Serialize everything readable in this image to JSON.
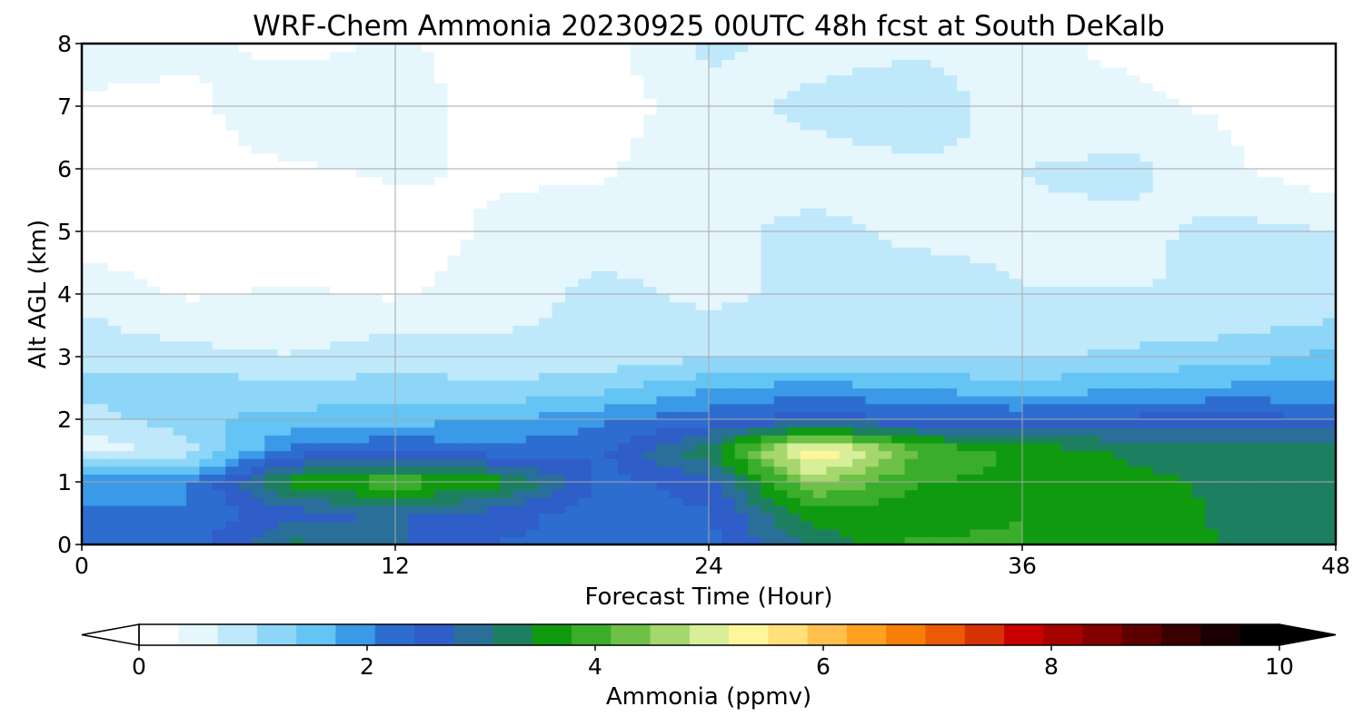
{
  "chart_data": {
    "type": "heatmap",
    "title": "WRF-Chem Ammonia  20230925 00UTC 48h fcst at South DeKalb",
    "xlabel": "Forecast Time (Hour)",
    "ylabel": "Alt AGL (km)",
    "xlim": [
      0,
      48
    ],
    "ylim": [
      0,
      8
    ],
    "x_ticks": [
      0,
      12,
      24,
      36,
      48
    ],
    "y_ticks": [
      0,
      1,
      2,
      3,
      4,
      5,
      6,
      7,
      8
    ],
    "grid": true,
    "x": [
      0,
      4,
      8,
      12,
      16,
      20,
      24,
      28,
      32,
      36,
      40,
      44,
      48
    ],
    "y": [
      0,
      0.5,
      1,
      1.5,
      2,
      2.5,
      3,
      4,
      5,
      6,
      7,
      8
    ],
    "values": [
      [
        2.3,
        2.2,
        3.2,
        2.8,
        2.4,
        2.2,
        2.3,
        3.2,
        3.9,
        3.8,
        3.7,
        3.4,
        3.4
      ],
      [
        2.1,
        2.1,
        2.6,
        2.8,
        2.6,
        2.2,
        2.4,
        3.6,
        3.6,
        3.8,
        3.6,
        3.4,
        3.4
      ],
      [
        2.0,
        2.0,
        3.6,
        4.1,
        3.6,
        2.3,
        2.6,
        4.6,
        3.8,
        3.7,
        3.5,
        3.4,
        3.4
      ],
      [
        0.5,
        0.8,
        2.2,
        2.4,
        2.2,
        2.4,
        3.4,
        5.6,
        4.2,
        3.7,
        3.4,
        3.4,
        3.4
      ],
      [
        0.8,
        1.3,
        1.5,
        1.6,
        1.7,
        2.0,
        2.3,
        2.6,
        2.4,
        2.4,
        2.5,
        2.6,
        2.4
      ],
      [
        1.2,
        1.3,
        1.1,
        1.2,
        1.1,
        1.3,
        1.7,
        1.9,
        1.7,
        1.5,
        1.7,
        1.8,
        1.8
      ],
      [
        0.9,
        0.8,
        0.7,
        0.9,
        0.8,
        0.8,
        1.0,
        1.0,
        1.0,
        1.0,
        1.1,
        1.2,
        1.5
      ],
      [
        0.6,
        0.3,
        0.4,
        0.3,
        0.5,
        0.8,
        0.6,
        0.8,
        0.9,
        0.7,
        0.7,
        0.7,
        0.7
      ],
      [
        0.1,
        0.1,
        0.1,
        0.2,
        0.4,
        0.5,
        0.6,
        0.8,
        0.6,
        0.6,
        0.6,
        0.8,
        0.7
      ],
      [
        0.1,
        0.2,
        0.3,
        0.4,
        0.3,
        0.3,
        0.6,
        0.5,
        0.6,
        0.7,
        0.8,
        0.4,
        0.1
      ],
      [
        0.3,
        0.2,
        0.7,
        0.5,
        0.2,
        0.2,
        0.5,
        0.8,
        1.0,
        0.4,
        0.4,
        0.3,
        0.1
      ],
      [
        0.5,
        0.5,
        0.2,
        0.4,
        0.2,
        0.2,
        0.8,
        0.5,
        0.6,
        0.4,
        0.3,
        0.2,
        0.1
      ]
    ],
    "colorbar": {
      "label": "Ammonia  (ppmv)",
      "min": 0,
      "max": 10,
      "ticks": [
        "0",
        "2",
        "4",
        "6",
        "8",
        "10"
      ],
      "extend": "both",
      "colors": [
        "#ffffff",
        "#e6f6fd",
        "#bfe8fb",
        "#8ed6f7",
        "#64c4f3",
        "#3a9ae8",
        "#2d6dd0",
        "#2f5ec8",
        "#2a6f9a",
        "#1c8060",
        "#109a10",
        "#3aae2a",
        "#6ec046",
        "#a6d66e",
        "#d8ee98",
        "#fff59a",
        "#ffe079",
        "#ffc04e",
        "#ffa020",
        "#f77f05",
        "#ec5a05",
        "#d63205",
        "#c80000",
        "#a60000",
        "#840000",
        "#5e0000",
        "#3a0000",
        "#1a0000",
        "#000000"
      ]
    }
  }
}
